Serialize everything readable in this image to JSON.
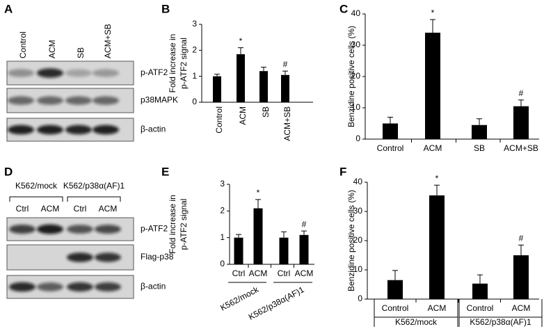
{
  "chart_data": [
    {
      "type": "bar",
      "panel": "B",
      "ylabel": [
        "Fold increase in",
        "p-ATF2 signal"
      ],
      "color": "#000000",
      "categories": [
        "Control",
        "ACM",
        "SB",
        "ACM+SB"
      ],
      "values": [
        1.0,
        1.85,
        1.2,
        1.05
      ],
      "errors": [
        0.08,
        0.25,
        0.15,
        0.15
      ],
      "annotations": [
        null,
        "*",
        null,
        "#"
      ],
      "ylim": [
        0,
        3
      ],
      "yticks": [
        0,
        1,
        2,
        3
      ]
    },
    {
      "type": "bar",
      "panel": "C",
      "ylabel": [
        "Benzidine positive cells (%)"
      ],
      "color": "#000000",
      "categories": [
        "Control",
        "ACM",
        "SB",
        "ACM+SB"
      ],
      "values": [
        5,
        34,
        4.5,
        10.5
      ],
      "errors": [
        2,
        4.2,
        2,
        2
      ],
      "annotations": [
        null,
        "*",
        null,
        "#"
      ],
      "ylim": [
        0,
        40
      ],
      "yticks": [
        0,
        10,
        20,
        30,
        40
      ]
    },
    {
      "type": "bar",
      "panel": "E",
      "ylabel": [
        "Fold increase in",
        "p-ATF2 signal"
      ],
      "color": "#000000",
      "categories": [
        "Ctrl",
        "ACM",
        "Ctrl",
        "ACM"
      ],
      "groups": [
        "K562/mock",
        "K562/p38α(AF)1"
      ],
      "values": [
        1.0,
        2.1,
        1.0,
        1.1
      ],
      "errors": [
        0.12,
        0.33,
        0.22,
        0.15
      ],
      "annotations": [
        null,
        "*",
        null,
        "#"
      ],
      "ylim": [
        0,
        3
      ],
      "yticks": [
        0,
        1,
        2,
        3
      ]
    },
    {
      "type": "bar",
      "panel": "F",
      "ylabel": [
        "Benzidine positive cells (%)"
      ],
      "color": "#000000",
      "categories": [
        "Control",
        "ACM",
        "Control",
        "ACM"
      ],
      "groups": [
        "K562/mock",
        "K562/p38α(AF)1"
      ],
      "values": [
        6.5,
        35.5,
        5.3,
        15
      ],
      "errors": [
        3.3,
        3.5,
        3,
        3.5
      ],
      "annotations": [
        null,
        "*",
        null,
        "#"
      ],
      "ylim": [
        0,
        40
      ],
      "yticks": [
        0,
        10,
        20,
        30,
        40
      ]
    }
  ],
  "blots": [
    {
      "panel": "A",
      "lanes": [
        "Control",
        "ACM",
        "SB",
        "ACM+SB"
      ],
      "rows": [
        "p-ATF2",
        "p38MAPK",
        "β-actin"
      ]
    },
    {
      "panel": "D",
      "groups": [
        "K562/mock",
        "K562/p38α(AF)1"
      ],
      "lanes": [
        "Ctrl",
        "ACM",
        "Ctrl",
        "ACM"
      ],
      "rows": [
        "p-ATF2",
        "Flag-p38",
        "β-actin"
      ]
    }
  ]
}
